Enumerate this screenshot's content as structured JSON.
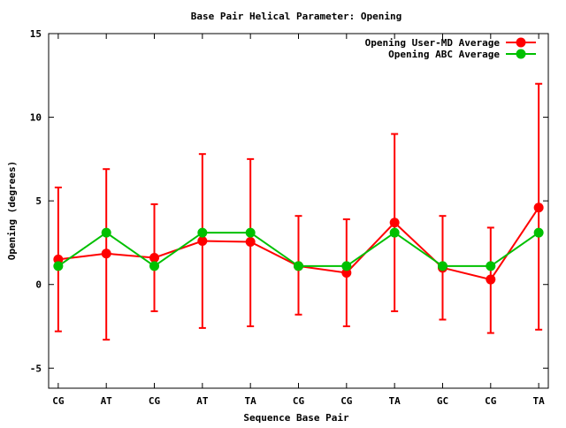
{
  "chart_data": {
    "type": "line",
    "title": "Base Pair Helical Parameter: Opening",
    "xlabel": "Sequence Base Pair",
    "ylabel": "Opening (degrees)",
    "categories": [
      "CG",
      "AT",
      "CG",
      "AT",
      "TA",
      "CG",
      "CG",
      "TA",
      "GC",
      "CG",
      "TA"
    ],
    "xlim": [
      -0.2,
      10.2
    ],
    "ylim": [
      -6.2,
      15
    ],
    "yticks": [
      -5,
      0,
      5,
      10,
      15
    ],
    "ytick_labels": [
      "-5",
      "0",
      "5",
      "10",
      "15"
    ],
    "grid": false,
    "legend_position": "top-right",
    "series": [
      {
        "name": "Opening User-MD Average",
        "color": "#ff0000",
        "values": [
          1.5,
          1.85,
          1.6,
          2.6,
          2.55,
          1.1,
          0.7,
          3.7,
          1.0,
          0.3,
          4.6
        ],
        "err_high": [
          5.8,
          6.9,
          4.8,
          7.8,
          7.5,
          4.1,
          3.9,
          9.0,
          4.1,
          3.4,
          12.0
        ],
        "err_low": [
          -2.8,
          -3.3,
          -1.6,
          -2.6,
          -2.5,
          -1.8,
          -2.5,
          -1.6,
          -2.1,
          -2.9,
          -2.7
        ]
      },
      {
        "name": "Opening ABC Average",
        "color": "#00c000",
        "values": [
          1.1,
          3.1,
          1.1,
          3.1,
          3.1,
          1.1,
          1.1,
          3.1,
          1.1,
          1.1,
          3.1
        ]
      }
    ]
  }
}
